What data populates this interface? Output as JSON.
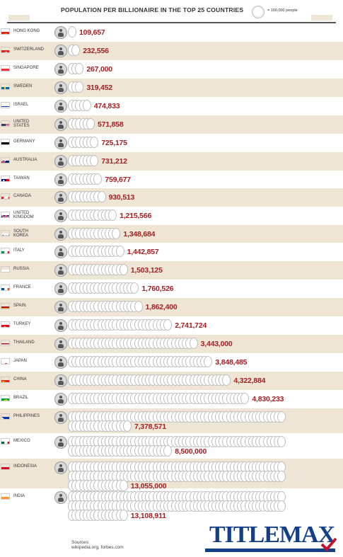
{
  "title": "POPULATION PER BILLIONAIRE IN THE TOP 25 COUNTRIES",
  "legend": "= 100,000 people",
  "colors": {
    "shade": "#efe5d5",
    "value": "#a41e22",
    "logo": "#123f87"
  },
  "chart_data": {
    "type": "bar",
    "title": "POPULATION PER BILLIONAIRE IN THE TOP 25 COUNTRIES",
    "unit_note": "= 100,000 people",
    "categories": [
      "HONG KONG",
      "SWITZERLAND",
      "SINGAPORE",
      "SWEDEN",
      "ISRAEL",
      "UNITED STATES",
      "GERMANY",
      "AUSTRALIA",
      "TAIWAN",
      "CANADA",
      "UNITED KINGDOM",
      "SOUTH KOREA",
      "ITALY",
      "RUSSIA",
      "FRANCE",
      "SPAIN",
      "TURKEY",
      "THAILAND",
      "JAPAN",
      "CHINA",
      "BRAZIL",
      "PHILIPPINES",
      "MEXICO",
      "INDONESIA",
      "INDIA"
    ],
    "values": [
      109657,
      232556,
      267000,
      319452,
      474833,
      571858,
      725175,
      731212,
      759677,
      930513,
      1215566,
      1348684,
      1442857,
      1503125,
      1760526,
      1862400,
      2741724,
      3443000,
      3848485,
      4322884,
      4830233,
      7378571,
      8500000,
      13055000,
      13108911
    ],
    "labels": [
      "109,657",
      "232,556",
      "267,000",
      "319,452",
      "474,833",
      "571,858",
      "725,175",
      "731,212",
      "759,677",
      "930,513",
      "1,215,566",
      "1,348,684",
      "1,442,857",
      "1,503,125",
      "1,760,526",
      "1,862,400",
      "2,741,724",
      "3,443,000",
      "3,848,485",
      "4,322,884",
      "4,830,233",
      "7,378,571",
      "8,500,000",
      "13,055,000",
      "13,108,911"
    ],
    "country_lines": [
      [
        "HONG KONG"
      ],
      [
        "SWITZERLAND"
      ],
      [
        "SINGAPORE"
      ],
      [
        "SWEDEN"
      ],
      [
        "ISRAEL"
      ],
      [
        "UNITED",
        "STATES"
      ],
      [
        "GERMANY"
      ],
      [
        "AUSTRALIA"
      ],
      [
        "TAIWAN"
      ],
      [
        "CANADA"
      ],
      [
        "UNITED",
        "KINGDOM"
      ],
      [
        "SOUTH",
        "KOREA"
      ],
      [
        "ITALY"
      ],
      [
        "RUSSIA"
      ],
      [
        "FRANCE"
      ],
      [
        "SPAIN"
      ],
      [
        "TURKEY"
      ],
      [
        "THAILAND"
      ],
      [
        "JAPAN"
      ],
      [
        "CHINA"
      ],
      [
        "BRAZIL"
      ],
      [
        "PHILIPPINES"
      ],
      [
        "MEXICO"
      ],
      [
        "INDONESIA"
      ],
      [
        "INDIA"
      ]
    ],
    "flags": [
      "hong-kong",
      "switzerland",
      "singapore",
      "sweden",
      "israel",
      "united-states",
      "germany",
      "australia",
      "taiwan",
      "canada",
      "united-kingdom",
      "south-korea",
      "italy",
      "russia",
      "france",
      "spain",
      "turkey",
      "thailand",
      "japan",
      "china",
      "brazil",
      "philippines",
      "mexico",
      "indonesia",
      "india"
    ]
  },
  "sources": [
    "Sources:",
    "wikipedia.org, forbes.com"
  ],
  "brand": "TITLEMAX"
}
